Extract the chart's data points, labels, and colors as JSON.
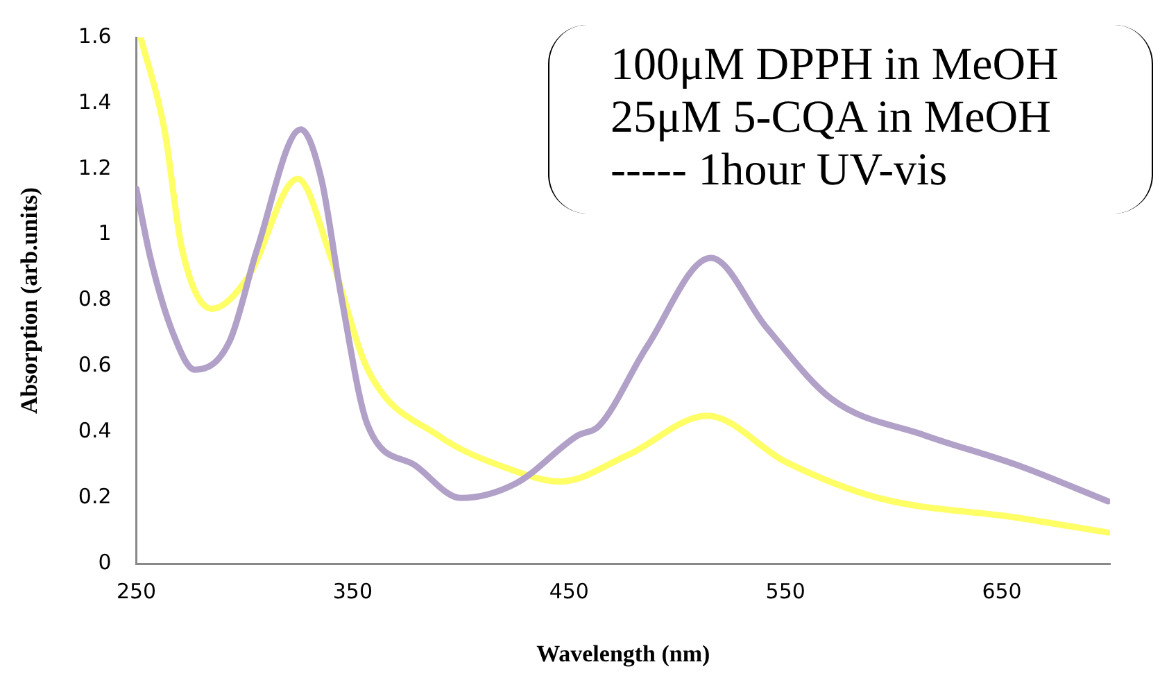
{
  "chart_data": {
    "type": "line",
    "xlabel": "Wavelength (nm)",
    "ylabel": "Absorption (arb.units)",
    "annotations": [
      "100μM DPPH in MeOH",
      "25μM 5-CQA in MeOH",
      "----- 1hour UV-vis"
    ],
    "xlim": [
      250,
      700
    ],
    "xticks": [
      250,
      350,
      450,
      550,
      650
    ],
    "ylim": [
      0,
      1.6
    ],
    "yticks": [
      0,
      0.2,
      0.4,
      0.6,
      0.8,
      1,
      1.2,
      1.4,
      1.6
    ],
    "grid": false,
    "legend": false,
    "marker": "none",
    "line_style": "solid",
    "series": [
      {
        "color": "#b1a0c7",
        "x": [
          250,
          256.5,
          267,
          277,
          293,
          306,
          326,
          335.5,
          344.5,
          357,
          378.6,
          400,
          425.6,
          454,
          464,
          486,
          515.5,
          541,
          571.5,
          614.6,
          657,
          699
        ],
        "values": [
          1.14,
          0.93,
          0.7,
          0.59,
          0.675,
          0.96,
          1.32,
          1.17,
          0.82,
          0.42,
          0.3,
          0.2,
          0.245,
          0.39,
          0.42,
          0.66,
          0.93,
          0.72,
          0.5,
          0.39,
          0.3,
          0.19
        ]
      },
      {
        "color": "#ffff66",
        "x": [
          252,
          263,
          271,
          285,
          301.5,
          324.6,
          340,
          357,
          389.5,
          421.6,
          446,
          477,
          514,
          550,
          593,
          657,
          699
        ],
        "values": [
          1.6,
          1.32,
          0.96,
          0.775,
          0.87,
          1.17,
          0.93,
          0.59,
          0.39,
          0.29,
          0.25,
          0.33,
          0.45,
          0.31,
          0.2,
          0.14,
          0.095
        ]
      }
    ]
  }
}
